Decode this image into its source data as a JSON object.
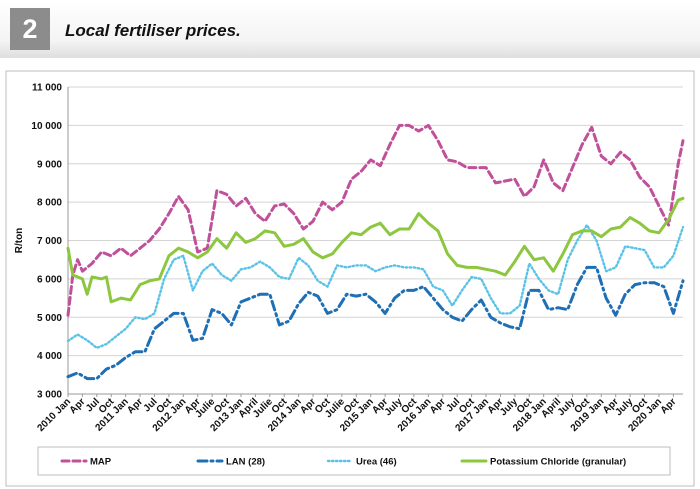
{
  "header": {
    "figure_number": "2",
    "title": "Local fertiliser prices."
  },
  "chart_data": {
    "type": "line",
    "title": "",
    "xlabel": "",
    "ylabel": "R/ton",
    "ylim": [
      3000,
      11000
    ],
    "ytick_labels": [
      "3 000",
      "4 000",
      "5 000",
      "6 000",
      "7 000",
      "8 000",
      "9 000",
      "10 000",
      "11 000"
    ],
    "grid": true,
    "legend_position": "bottom",
    "x_tick_labels": [
      "2010 Jan",
      "Apr",
      "Jul",
      "Oct",
      "2011 Jan",
      "Apr",
      "Jul",
      "Oct",
      "2012 Jan",
      "Apr",
      "Julie",
      "Oct",
      "2013 Jan",
      "April",
      "Julie",
      "Oct",
      "2014 Jan",
      "Apr",
      "Oct",
      "Julie",
      "Oct",
      "2015 Jan",
      "Apr",
      "July",
      "Oct",
      "2016 Jan",
      "Apr",
      "Jul",
      "Oct",
      "2017 Jan",
      "Apr",
      "July",
      "Oct",
      "2018 Jan",
      "April",
      "July",
      "Oct",
      "2019 Jan",
      "Apr",
      "July",
      "Oct",
      "2020 Jan",
      "Apr"
    ],
    "x_tick_months": [
      0,
      3,
      6,
      9,
      12,
      15,
      18,
      21,
      24,
      27,
      30,
      33,
      36,
      39,
      42,
      45,
      48,
      51,
      54,
      57,
      60,
      63,
      66,
      69,
      72,
      75,
      78,
      81,
      84,
      87,
      90,
      93,
      96,
      99,
      102,
      105,
      108,
      111,
      114,
      117,
      120,
      123,
      126
    ],
    "series": [
      {
        "name": "MAP",
        "color": "#c0509a",
        "style": "dash",
        "values": [
          [
            0,
            5050
          ],
          [
            1,
            6100
          ],
          [
            2,
            6500
          ],
          [
            3,
            6200
          ],
          [
            5,
            6400
          ],
          [
            7,
            6700
          ],
          [
            9,
            6600
          ],
          [
            11,
            6800
          ],
          [
            13,
            6600
          ],
          [
            15,
            6800
          ],
          [
            17,
            7000
          ],
          [
            19,
            7300
          ],
          [
            21,
            7700
          ],
          [
            23,
            8150
          ],
          [
            25,
            7800
          ],
          [
            27,
            6700
          ],
          [
            29,
            6800
          ],
          [
            31,
            8300
          ],
          [
            33,
            8200
          ],
          [
            35,
            7900
          ],
          [
            37,
            8100
          ],
          [
            39,
            7700
          ],
          [
            41,
            7500
          ],
          [
            43,
            7900
          ],
          [
            45,
            7950
          ],
          [
            47,
            7700
          ],
          [
            49,
            7300
          ],
          [
            51,
            7500
          ],
          [
            53,
            8000
          ],
          [
            55,
            7800
          ],
          [
            57,
            8000
          ],
          [
            59,
            8600
          ],
          [
            61,
            8800
          ],
          [
            63,
            9100
          ],
          [
            65,
            8950
          ],
          [
            67,
            9500
          ],
          [
            69,
            10000
          ],
          [
            71,
            10000
          ],
          [
            73,
            9850
          ],
          [
            75,
            10000
          ],
          [
            77,
            9600
          ],
          [
            79,
            9100
          ],
          [
            81,
            9050
          ],
          [
            83,
            8900
          ],
          [
            85,
            8900
          ],
          [
            87,
            8900
          ],
          [
            89,
            8500
          ],
          [
            91,
            8550
          ],
          [
            93,
            8600
          ],
          [
            95,
            8150
          ],
          [
            97,
            8400
          ],
          [
            99,
            9100
          ],
          [
            101,
            8500
          ],
          [
            103,
            8300
          ],
          [
            105,
            8900
          ],
          [
            107,
            9500
          ],
          [
            109,
            9950
          ],
          [
            111,
            9200
          ],
          [
            113,
            9000
          ],
          [
            115,
            9300
          ],
          [
            117,
            9100
          ],
          [
            119,
            8650
          ],
          [
            121,
            8400
          ],
          [
            123,
            7900
          ],
          [
            125,
            7400
          ],
          [
            127,
            9000
          ],
          [
            128,
            9600
          ]
        ]
      },
      {
        "name": "LAN (28)",
        "color": "#1f6fb4",
        "style": "dashdot",
        "values": [
          [
            0,
            3450
          ],
          [
            2,
            3550
          ],
          [
            4,
            3400
          ],
          [
            6,
            3400
          ],
          [
            8,
            3650
          ],
          [
            10,
            3750
          ],
          [
            12,
            3950
          ],
          [
            14,
            4100
          ],
          [
            16,
            4100
          ],
          [
            18,
            4700
          ],
          [
            20,
            4900
          ],
          [
            22,
            5100
          ],
          [
            24,
            5100
          ],
          [
            26,
            4400
          ],
          [
            28,
            4450
          ],
          [
            30,
            5200
          ],
          [
            32,
            5100
          ],
          [
            34,
            4800
          ],
          [
            36,
            5400
          ],
          [
            38,
            5500
          ],
          [
            40,
            5600
          ],
          [
            42,
            5600
          ],
          [
            44,
            4800
          ],
          [
            46,
            4900
          ],
          [
            48,
            5350
          ],
          [
            50,
            5650
          ],
          [
            52,
            5550
          ],
          [
            54,
            5100
          ],
          [
            56,
            5200
          ],
          [
            58,
            5600
          ],
          [
            60,
            5550
          ],
          [
            62,
            5600
          ],
          [
            64,
            5400
          ],
          [
            66,
            5100
          ],
          [
            68,
            5500
          ],
          [
            70,
            5700
          ],
          [
            72,
            5700
          ],
          [
            74,
            5800
          ],
          [
            76,
            5500
          ],
          [
            78,
            5200
          ],
          [
            80,
            5000
          ],
          [
            82,
            4900
          ],
          [
            84,
            5200
          ],
          [
            86,
            5450
          ],
          [
            88,
            5000
          ],
          [
            90,
            4850
          ],
          [
            92,
            4750
          ],
          [
            94,
            4700
          ],
          [
            96,
            5700
          ],
          [
            98,
            5700
          ],
          [
            100,
            5200
          ],
          [
            102,
            5250
          ],
          [
            104,
            5200
          ],
          [
            106,
            5850
          ],
          [
            108,
            6300
          ],
          [
            110,
            6300
          ],
          [
            112,
            5500
          ],
          [
            114,
            5050
          ],
          [
            116,
            5600
          ],
          [
            118,
            5850
          ],
          [
            120,
            5900
          ],
          [
            122,
            5900
          ],
          [
            124,
            5800
          ],
          [
            126,
            5100
          ],
          [
            128,
            5950
          ]
        ]
      },
      {
        "name": "Urea (46)",
        "color": "#5bc2e7",
        "style": "dot",
        "values": [
          [
            0,
            4380
          ],
          [
            2,
            4550
          ],
          [
            4,
            4400
          ],
          [
            6,
            4200
          ],
          [
            8,
            4300
          ],
          [
            10,
            4500
          ],
          [
            12,
            4700
          ],
          [
            14,
            5000
          ],
          [
            16,
            4950
          ],
          [
            18,
            5100
          ],
          [
            20,
            6000
          ],
          [
            22,
            6500
          ],
          [
            24,
            6600
          ],
          [
            26,
            5700
          ],
          [
            28,
            6200
          ],
          [
            30,
            6400
          ],
          [
            32,
            6100
          ],
          [
            34,
            5950
          ],
          [
            36,
            6250
          ],
          [
            38,
            6300
          ],
          [
            40,
            6450
          ],
          [
            42,
            6300
          ],
          [
            44,
            6050
          ],
          [
            46,
            6000
          ],
          [
            48,
            6550
          ],
          [
            50,
            6350
          ],
          [
            52,
            5950
          ],
          [
            54,
            5800
          ],
          [
            56,
            6350
          ],
          [
            58,
            6300
          ],
          [
            60,
            6350
          ],
          [
            62,
            6350
          ],
          [
            64,
            6200
          ],
          [
            66,
            6300
          ],
          [
            68,
            6350
          ],
          [
            70,
            6300
          ],
          [
            72,
            6300
          ],
          [
            74,
            6250
          ],
          [
            76,
            5800
          ],
          [
            78,
            5700
          ],
          [
            80,
            5300
          ],
          [
            82,
            5700
          ],
          [
            84,
            6050
          ],
          [
            86,
            6000
          ],
          [
            88,
            5500
          ],
          [
            90,
            5100
          ],
          [
            92,
            5100
          ],
          [
            94,
            5300
          ],
          [
            96,
            6400
          ],
          [
            98,
            6000
          ],
          [
            100,
            5700
          ],
          [
            102,
            5600
          ],
          [
            104,
            6500
          ],
          [
            106,
            7000
          ],
          [
            108,
            7400
          ],
          [
            110,
            7000
          ],
          [
            112,
            6200
          ],
          [
            114,
            6300
          ],
          [
            116,
            6850
          ],
          [
            118,
            6800
          ],
          [
            120,
            6750
          ],
          [
            122,
            6300
          ],
          [
            124,
            6300
          ],
          [
            126,
            6600
          ],
          [
            128,
            7350
          ]
        ]
      },
      {
        "name": "Potassium Chloride (granular)",
        "color": "#8dc63f",
        "style": "solid",
        "values": [
          [
            0,
            6800
          ],
          [
            1,
            6100
          ],
          [
            3,
            6000
          ],
          [
            4,
            5600
          ],
          [
            5,
            6050
          ],
          [
            7,
            6000
          ],
          [
            8,
            6050
          ],
          [
            9,
            5400
          ],
          [
            11,
            5500
          ],
          [
            13,
            5450
          ],
          [
            15,
            5850
          ],
          [
            17,
            5950
          ],
          [
            19,
            6000
          ],
          [
            21,
            6600
          ],
          [
            23,
            6800
          ],
          [
            25,
            6700
          ],
          [
            27,
            6550
          ],
          [
            29,
            6700
          ],
          [
            31,
            7050
          ],
          [
            33,
            6800
          ],
          [
            35,
            7200
          ],
          [
            37,
            6950
          ],
          [
            39,
            7050
          ],
          [
            41,
            7250
          ],
          [
            43,
            7200
          ],
          [
            45,
            6850
          ],
          [
            47,
            6900
          ],
          [
            49,
            7050
          ],
          [
            51,
            6700
          ],
          [
            53,
            6550
          ],
          [
            55,
            6650
          ],
          [
            57,
            6950
          ],
          [
            59,
            7200
          ],
          [
            61,
            7150
          ],
          [
            63,
            7350
          ],
          [
            65,
            7450
          ],
          [
            67,
            7150
          ],
          [
            69,
            7300
          ],
          [
            71,
            7300
          ],
          [
            73,
            7700
          ],
          [
            75,
            7450
          ],
          [
            77,
            7250
          ],
          [
            79,
            6650
          ],
          [
            81,
            6350
          ],
          [
            83,
            6300
          ],
          [
            85,
            6300
          ],
          [
            87,
            6250
          ],
          [
            89,
            6200
          ],
          [
            91,
            6100
          ],
          [
            93,
            6450
          ],
          [
            95,
            6850
          ],
          [
            97,
            6500
          ],
          [
            99,
            6550
          ],
          [
            101,
            6200
          ],
          [
            103,
            6650
          ],
          [
            105,
            7150
          ],
          [
            107,
            7250
          ],
          [
            109,
            7250
          ],
          [
            111,
            7100
          ],
          [
            113,
            7300
          ],
          [
            115,
            7350
          ],
          [
            117,
            7600
          ],
          [
            119,
            7450
          ],
          [
            121,
            7250
          ],
          [
            123,
            7200
          ],
          [
            125,
            7550
          ],
          [
            127,
            8050
          ],
          [
            128,
            8100
          ]
        ]
      }
    ]
  }
}
